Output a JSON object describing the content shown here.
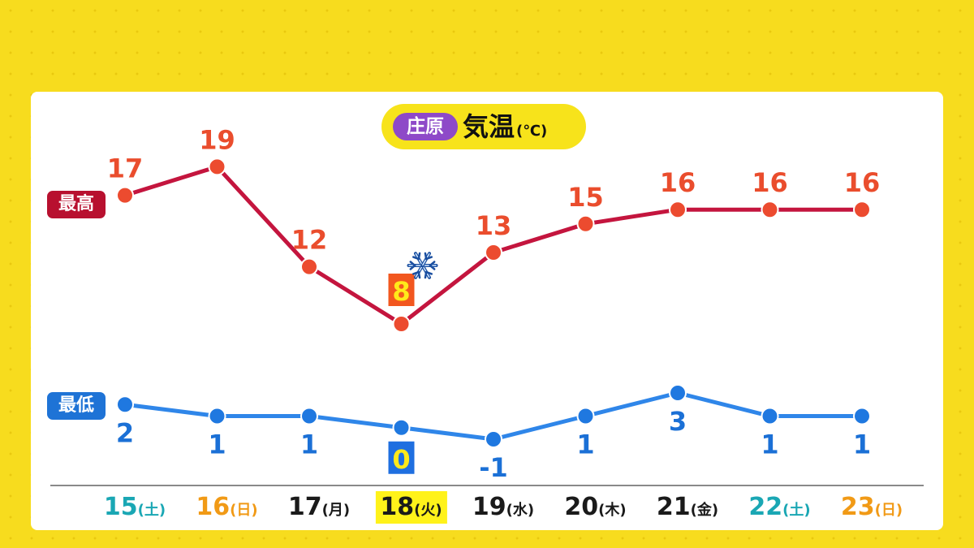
{
  "title": {
    "location": "庄原",
    "main": "気温",
    "unit": "(℃)"
  },
  "series_tags": {
    "high": "最高",
    "low": "最低"
  },
  "colors": {
    "high_line": "#c4153e",
    "high_point": "#ec4b2f",
    "high_label": "#ea4d2d",
    "low_line": "#2f86e9",
    "low_point": "#1f78e0",
    "low_label": "#1b70d6",
    "high_highlight_bg": "#f2571f",
    "high_highlight_fg": "#ffe91a",
    "low_highlight_bg": "#1f6fe0",
    "low_highlight_fg": "#ffe91a",
    "axis": "#8a8a8a"
  },
  "chart_data": {
    "type": "line",
    "categories": [
      "15",
      "16",
      "17",
      "18",
      "19",
      "20",
      "21",
      "22",
      "23"
    ],
    "weekdays": [
      "(土)",
      "(日)",
      "(月)",
      "(火)",
      "(水)",
      "(木)",
      "(金)",
      "(土)",
      "(日)"
    ],
    "day_types": [
      "sat",
      "sun",
      "wk",
      "wk",
      "wk",
      "wk",
      "wk",
      "sat",
      "sun"
    ],
    "highlight_index": 3,
    "snow_icon_index": 3,
    "series": [
      {
        "name": "最高",
        "values": [
          17,
          19,
          12,
          8,
          13,
          15,
          16,
          16,
          16
        ]
      },
      {
        "name": "最低",
        "values": [
          2,
          1,
          1,
          0,
          -1,
          1,
          3,
          1,
          1
        ]
      }
    ]
  }
}
